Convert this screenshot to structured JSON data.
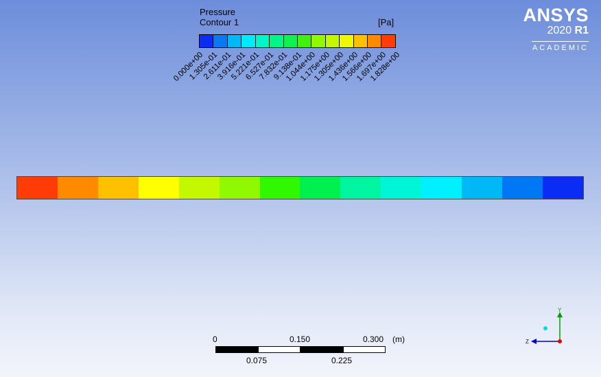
{
  "legend": {
    "variable": "Pressure",
    "name": "Contour 1",
    "units": "[Pa]",
    "colors": [
      "#0a2cf5",
      "#0a78f0",
      "#00b8f5",
      "#00eafa",
      "#00f5c8",
      "#00f58a",
      "#10f050",
      "#40f010",
      "#90f800",
      "#c4f800",
      "#f0f800",
      "#ffc000",
      "#ff8a00",
      "#ff3c08"
    ],
    "tick_labels": [
      "0.000e+00",
      "1.305e-01",
      "2.611e-01",
      "3.916e-01",
      "5.221e-01",
      "6.527e-01",
      "7.832e-01",
      "9.138e-01",
      "1.044e+00",
      "1.175e+00",
      "1.305e+00",
      "1.436e+00",
      "1.566e+00",
      "1.697e+00",
      "1.828e+00"
    ]
  },
  "contour": {
    "bands": [
      "#ff3c08",
      "#ff8a00",
      "#ffc000",
      "#ffff00",
      "#c4f800",
      "#90f800",
      "#30f800",
      "#00f050",
      "#00f5a0",
      "#00f5d8",
      "#00f0ff",
      "#00b8f5",
      "#0078f5",
      "#0a2cf5"
    ]
  },
  "logo": {
    "brand": "ANSYS",
    "year": "2020",
    "release": "R1",
    "edition": "ACADEMIC",
    "text_color": "#ffffff"
  },
  "scale": {
    "top_labels": [
      "0",
      "0.150",
      "0.300"
    ],
    "unit": "(m)",
    "bottom_labels": [
      "0.075",
      "0.225"
    ]
  },
  "axes": {
    "y_label": "Y",
    "z_label": "Z",
    "y_color": "#00a000",
    "z_color": "#0000c8",
    "origin_color": "#e00000",
    "x_dot_color": "#00d8e8"
  }
}
